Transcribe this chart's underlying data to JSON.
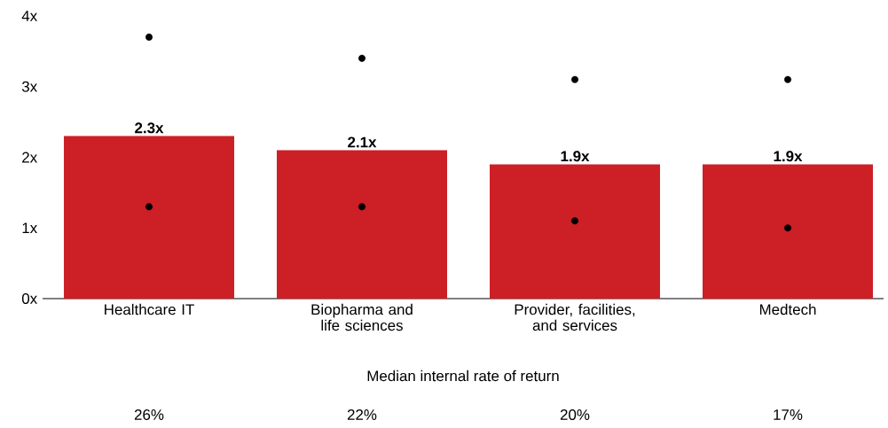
{
  "chart_data": {
    "type": "bar",
    "categories": [
      "Healthcare IT",
      "Biopharma and life sciences",
      "Provider, facilities, and services",
      "Medtech"
    ],
    "ylim": [
      0,
      4
    ],
    "marker": "circle",
    "yticks": [
      {
        "value": 0,
        "label": "0x"
      },
      {
        "value": 1,
        "label": "1x"
      },
      {
        "value": 2,
        "label": "2x"
      },
      {
        "value": 3,
        "label": "3x"
      },
      {
        "value": 4,
        "label": "4x"
      }
    ],
    "series": [
      {
        "color": "#cc1f26",
        "values": [
          2.3,
          2.1,
          1.9,
          1.9
        ],
        "value_labels": [
          "2.3x",
          "2.1x",
          "1.9x",
          "1.9x"
        ]
      },
      {
        "type": "scatter",
        "color": "#000000",
        "x": [
          "Healthcare IT",
          "Biopharma and life sciences",
          "Provider, facilities, and services",
          "Medtech"
        ],
        "values": [
          3.7,
          3.4,
          3.1,
          3.1
        ]
      },
      {
        "type": "scatter",
        "color": "#000000",
        "x": [
          "Healthcare IT",
          "Biopharma and life sciences",
          "Provider, facilities, and services",
          "Medtech"
        ],
        "values": [
          1.3,
          1.3,
          1.1,
          1.0
        ]
      }
    ],
    "annotations": [
      "Median internal rate of return",
      "26%",
      "22%",
      "20%",
      "17%"
    ]
  }
}
